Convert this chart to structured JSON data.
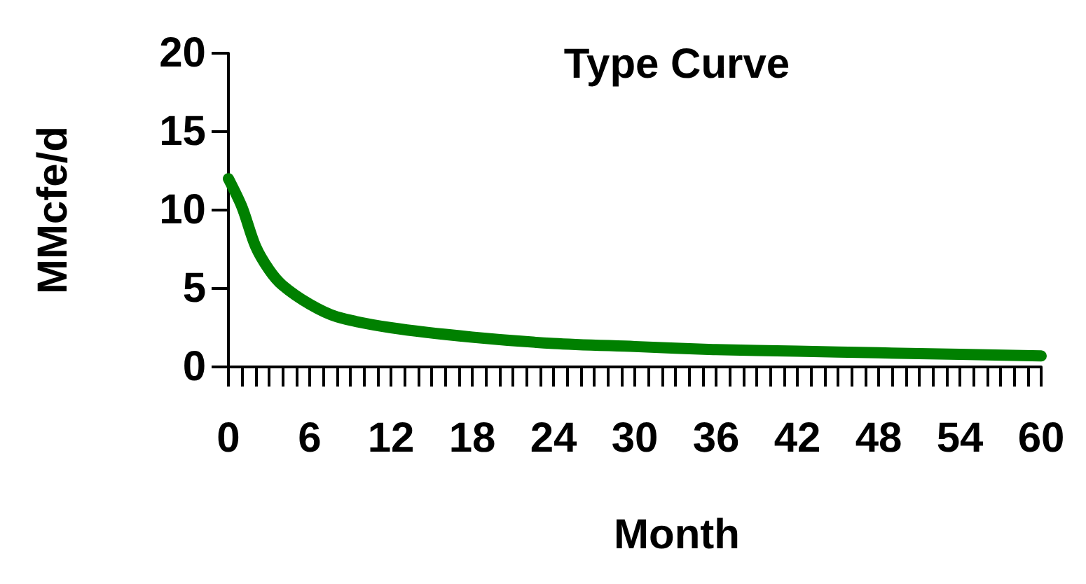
{
  "chart_data": {
    "type": "line",
    "title": "Type Curve",
    "xlabel": "Month",
    "ylabel": "MMcfe/d",
    "x": [
      0,
      1,
      2,
      3,
      4,
      6,
      8,
      12,
      18,
      24,
      30,
      36,
      42,
      48,
      54,
      60
    ],
    "series": [
      {
        "color": "#008000",
        "values": [
          12,
          10.2,
          7.7,
          6.2,
          5.2,
          4,
          3.2,
          2.5,
          1.9,
          1.5,
          1.3,
          1.1,
          1.0,
          0.9,
          0.8,
          0.7
        ]
      }
    ],
    "xlim": [
      0,
      60
    ],
    "xticks": [
      0,
      6,
      12,
      18,
      24,
      30,
      36,
      42,
      48,
      54,
      60
    ],
    "ylim": [
      0,
      20
    ],
    "yticks": [
      0,
      5,
      10,
      15,
      20
    ],
    "grid": false,
    "line_style": "solid"
  }
}
